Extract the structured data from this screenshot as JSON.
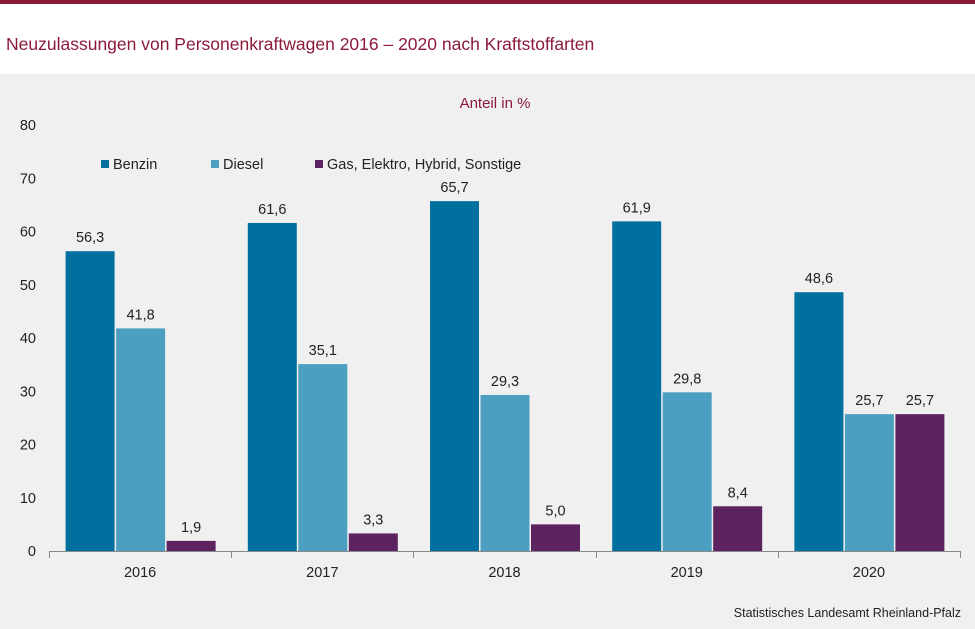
{
  "title": "Neuzulassungen von Personenkraftwagen 2016 – 2020 nach Kraftstoffarten",
  "source": "Statistisches Landesamt Rheinland-Pfalz",
  "chart_data": {
    "type": "bar",
    "title": "Neuzulassungen von Personenkraftwagen 2016 – 2020 nach Kraftstoffarten",
    "ylabel": "Anteil in %",
    "xlabel": "",
    "ylim": [
      0,
      80
    ],
    "yticks": [
      0,
      10,
      20,
      30,
      40,
      50,
      60,
      70,
      80
    ],
    "grid": false,
    "legend_position": "top-left",
    "categories": [
      "2016",
      "2017",
      "2018",
      "2019",
      "2020"
    ],
    "series": [
      {
        "name": "Benzin",
        "color": "#00709f",
        "values": [
          56.3,
          61.6,
          65.7,
          61.9,
          48.6
        ],
        "labels": [
          "56,3",
          "61,6",
          "65,7",
          "61,9",
          "48,6"
        ]
      },
      {
        "name": "Diesel",
        "color": "#4d9fc2",
        "values": [
          41.8,
          35.1,
          29.3,
          29.8,
          25.7
        ],
        "labels": [
          "41,8",
          "35,1",
          "29,3",
          "29,8",
          "25,7"
        ]
      },
      {
        "name": "Gas, Elektro, Hybrid, Sonstige",
        "color": "#5c2360",
        "values": [
          1.9,
          3.3,
          5.0,
          8.4,
          25.7
        ],
        "labels": [
          "1,9",
          "3,3",
          "5,0",
          "8,4",
          "25,7"
        ]
      }
    ]
  }
}
